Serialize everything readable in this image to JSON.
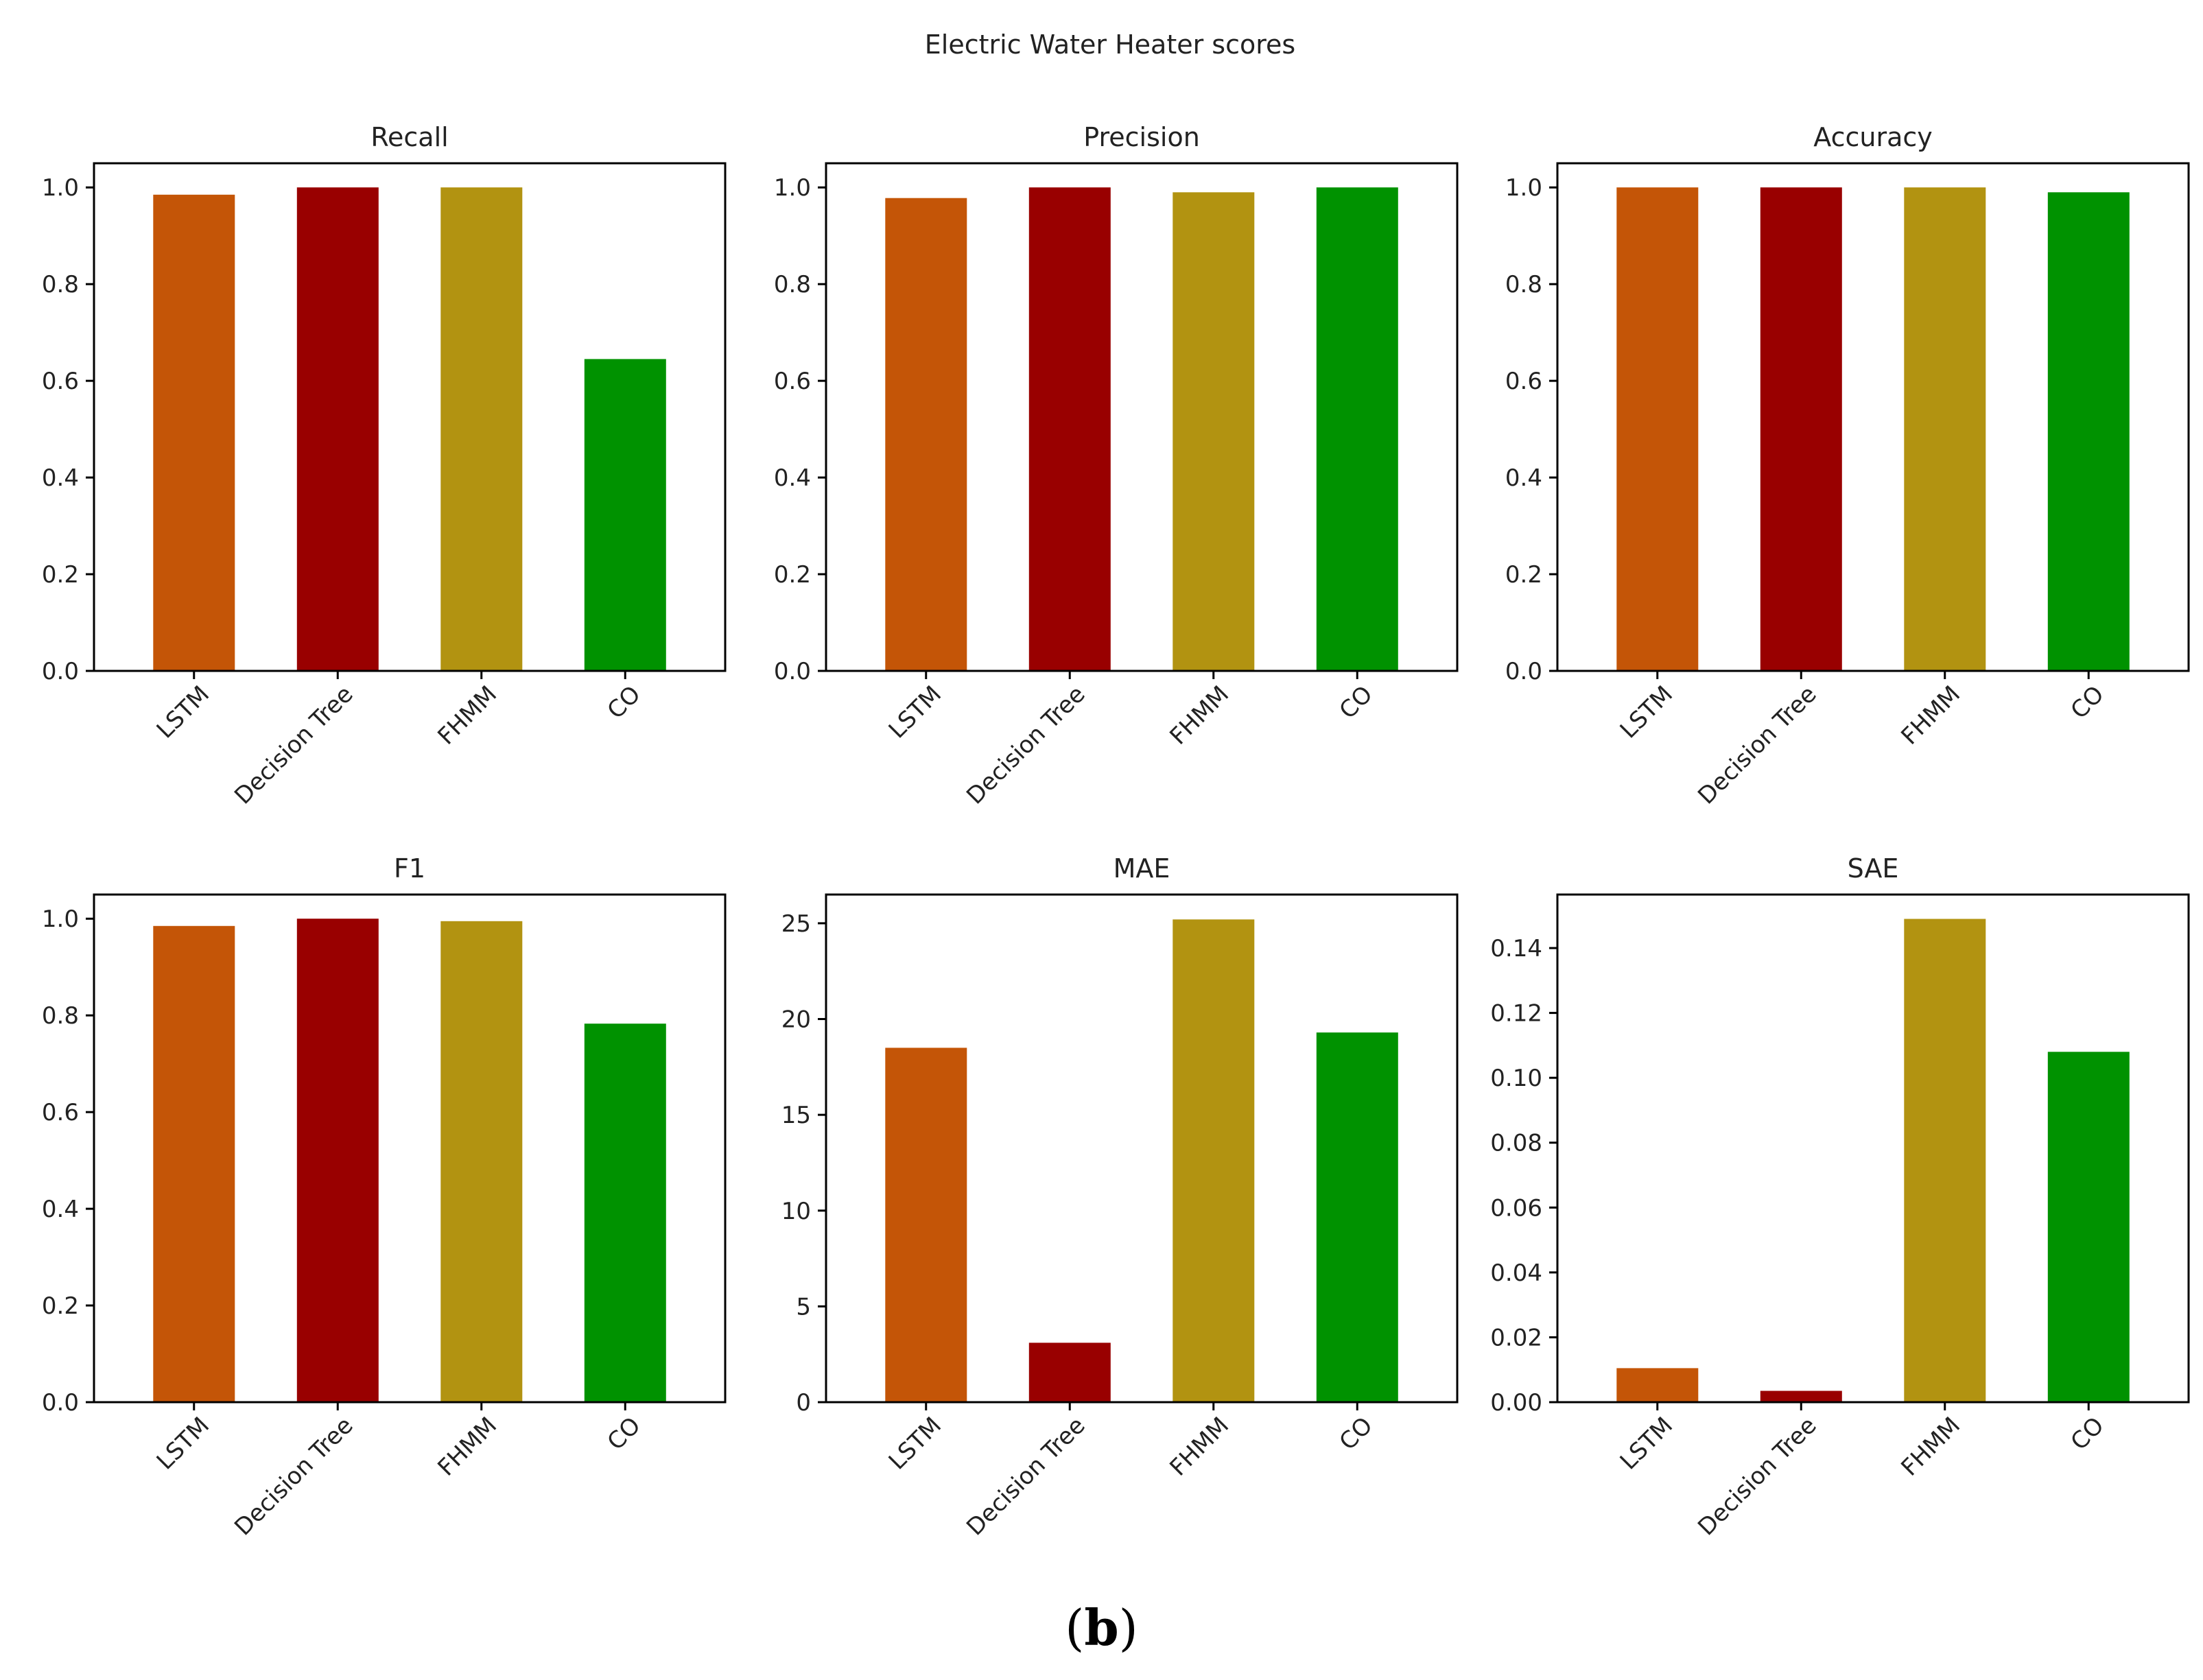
{
  "figure": {
    "suptitle": "Electric Water Heater scores",
    "caption_open": "(",
    "caption_letter": "b",
    "caption_close": ")"
  },
  "colors": {
    "LSTM": "#c45507",
    "Decision Tree": "#990000",
    "FHMM": "#b29311",
    "CO": "#009200"
  },
  "chart_data": [
    {
      "type": "bar",
      "title": "Recall",
      "categories": [
        "LSTM",
        "Decision Tree",
        "FHMM",
        "CO"
      ],
      "values": [
        0.985,
        1.0,
        1.0,
        0.645
      ],
      "ylim": [
        0,
        1.05
      ],
      "yticks": [
        0.0,
        0.2,
        0.4,
        0.6,
        0.8,
        1.0
      ],
      "ytick_labels": [
        "0.0",
        "0.2",
        "0.4",
        "0.6",
        "0.8",
        "1.0"
      ],
      "grid": false
    },
    {
      "type": "bar",
      "title": "Precision",
      "categories": [
        "LSTM",
        "Decision Tree",
        "FHMM",
        "CO"
      ],
      "values": [
        0.978,
        1.0,
        0.99,
        1.0
      ],
      "ylim": [
        0,
        1.05
      ],
      "yticks": [
        0.0,
        0.2,
        0.4,
        0.6,
        0.8,
        1.0
      ],
      "ytick_labels": [
        "0.0",
        "0.2",
        "0.4",
        "0.6",
        "0.8",
        "1.0"
      ],
      "grid": false
    },
    {
      "type": "bar",
      "title": "Accuracy",
      "categories": [
        "LSTM",
        "Decision Tree",
        "FHMM",
        "CO"
      ],
      "values": [
        1.0,
        1.0,
        1.0,
        0.99
      ],
      "ylim": [
        0,
        1.05
      ],
      "yticks": [
        0.0,
        0.2,
        0.4,
        0.6,
        0.8,
        1.0
      ],
      "ytick_labels": [
        "0.0",
        "0.2",
        "0.4",
        "0.6",
        "0.8",
        "1.0"
      ],
      "grid": false
    },
    {
      "type": "bar",
      "title": "F1",
      "categories": [
        "LSTM",
        "Decision Tree",
        "FHMM",
        "CO"
      ],
      "values": [
        0.985,
        1.0,
        0.995,
        0.783
      ],
      "ylim": [
        0,
        1.05
      ],
      "yticks": [
        0.0,
        0.2,
        0.4,
        0.6,
        0.8,
        1.0
      ],
      "ytick_labels": [
        "0.0",
        "0.2",
        "0.4",
        "0.6",
        "0.8",
        "1.0"
      ],
      "grid": false
    },
    {
      "type": "bar",
      "title": "MAE",
      "categories": [
        "LSTM",
        "Decision Tree",
        "FHMM",
        "CO"
      ],
      "values": [
        18.5,
        3.1,
        25.2,
        19.3
      ],
      "ylim": [
        0,
        26.5
      ],
      "yticks": [
        0,
        5,
        10,
        15,
        20,
        25
      ],
      "ytick_labels": [
        "0",
        "5",
        "10",
        "15",
        "20",
        "25"
      ],
      "grid": false
    },
    {
      "type": "bar",
      "title": "SAE",
      "categories": [
        "LSTM",
        "Decision Tree",
        "FHMM",
        "CO"
      ],
      "values": [
        0.0105,
        0.0035,
        0.149,
        0.108
      ],
      "ylim": [
        0,
        0.1565
      ],
      "yticks": [
        0.0,
        0.02,
        0.04,
        0.06,
        0.08,
        0.1,
        0.12,
        0.14
      ],
      "ytick_labels": [
        "0.00",
        "0.02",
        "0.04",
        "0.06",
        "0.08",
        "0.10",
        "0.12",
        "0.14"
      ],
      "grid": false
    }
  ]
}
